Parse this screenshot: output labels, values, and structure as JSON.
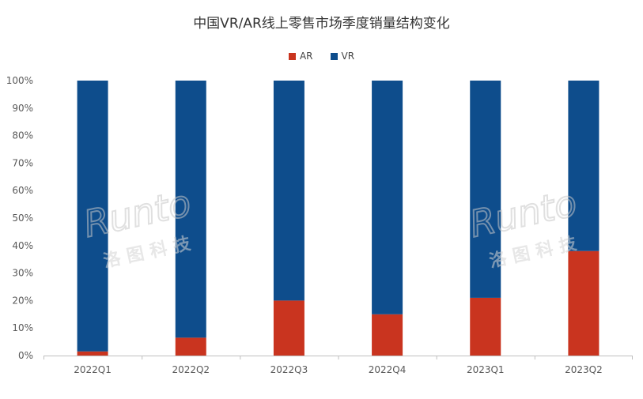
{
  "chart_data": {
    "type": "bar",
    "stacked": true,
    "percent": true,
    "title": "中国VR/AR线上零售市场季度销量结构变化",
    "categories": [
      "2022Q1",
      "2022Q2",
      "2022Q3",
      "2022Q4",
      "2023Q1",
      "2023Q2"
    ],
    "series": [
      {
        "name": "AR",
        "color": "#c9341f",
        "values": [
          1.5,
          6.5,
          20,
          15,
          21,
          38
        ]
      },
      {
        "name": "VR",
        "color": "#0e4d8c",
        "values": [
          98.5,
          93.5,
          80,
          85,
          79,
          62
        ]
      }
    ],
    "ylim": [
      0,
      100
    ],
    "yticks": [
      "0%",
      "10%",
      "20%",
      "30%",
      "40%",
      "50%",
      "60%",
      "70%",
      "80%",
      "90%",
      "100%"
    ],
    "xlabel": "",
    "ylabel": "",
    "legend_position": "top",
    "grid": false
  },
  "watermark": {
    "text": "Runto",
    "subtext": "洛图科技"
  }
}
